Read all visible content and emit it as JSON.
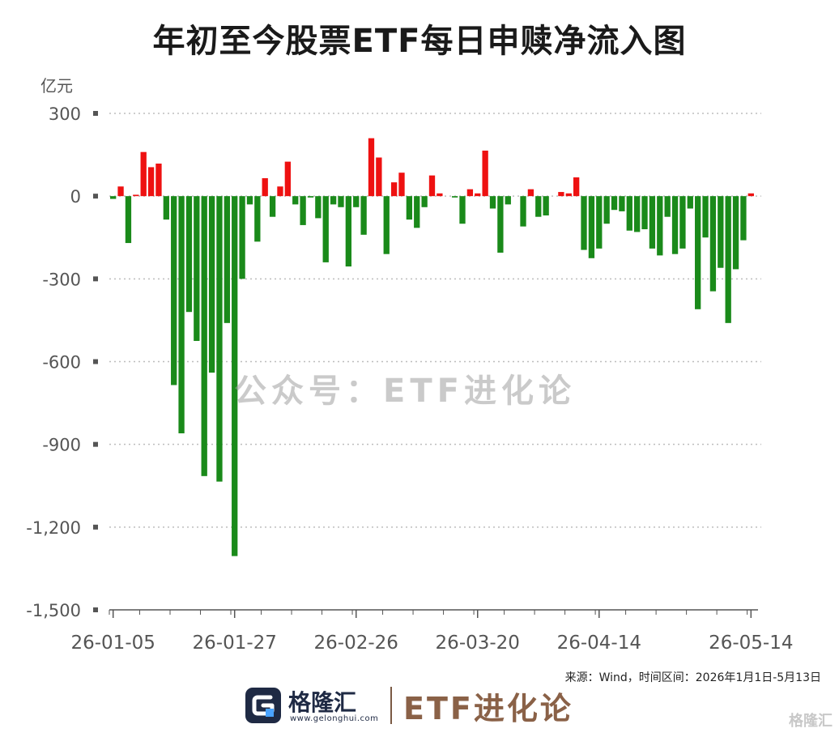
{
  "page": {
    "title": "年初至今股票ETF每日申赎净流入图",
    "watermark": "公众号：ETF进化论",
    "source": "来源：Wind，时间区间：2026年1月1日-5月13日",
    "brand_name": "格隆汇",
    "brand_url": "www.gelonghui.com",
    "brand2": "ETF进化论",
    "corner_mark": "格隆汇"
  },
  "colors": {
    "positive": "#ee1111",
    "negative": "#1a8a1a",
    "grid": "#bdbdbd",
    "axis_text": "#555555"
  },
  "chart_data": {
    "type": "bar",
    "unit": "亿元",
    "ylim": [
      -1500,
      300
    ],
    "yticks": [
      300,
      0,
      -300,
      -600,
      -900,
      -1200,
      -1500
    ],
    "ytick_labels": [
      "300",
      "0",
      "-300",
      "-600",
      "-900",
      "-1,200",
      "-1,500"
    ],
    "xtick_labels": [
      "26-01-05",
      "26-01-27",
      "26-02-26",
      "26-03-20",
      "26-04-14",
      "26-05-14"
    ],
    "xtick_indices": [
      0,
      16,
      32,
      48,
      64,
      84
    ],
    "grid": "horizontal dotted",
    "values": [
      -10,
      35,
      -170,
      5,
      160,
      105,
      118,
      -85,
      -685,
      -860,
      -420,
      -525,
      -1015,
      -640,
      -1035,
      -460,
      -1305,
      -300,
      -30,
      -165,
      65,
      -75,
      35,
      125,
      -30,
      -105,
      -5,
      -80,
      -240,
      -30,
      -40,
      -255,
      -40,
      -140,
      210,
      140,
      -210,
      50,
      85,
      -85,
      -115,
      -40,
      75,
      10,
      0,
      -5,
      -100,
      25,
      10,
      165,
      -45,
      -205,
      -30,
      0,
      -110,
      25,
      -75,
      -70,
      0,
      15,
      10,
      68,
      -195,
      -225,
      -190,
      -100,
      -50,
      -55,
      -125,
      -130,
      -120,
      -190,
      -215,
      -75,
      -210,
      -190,
      -45,
      -410,
      -150,
      -345,
      -260,
      -460,
      -265,
      -160,
      10
    ]
  }
}
